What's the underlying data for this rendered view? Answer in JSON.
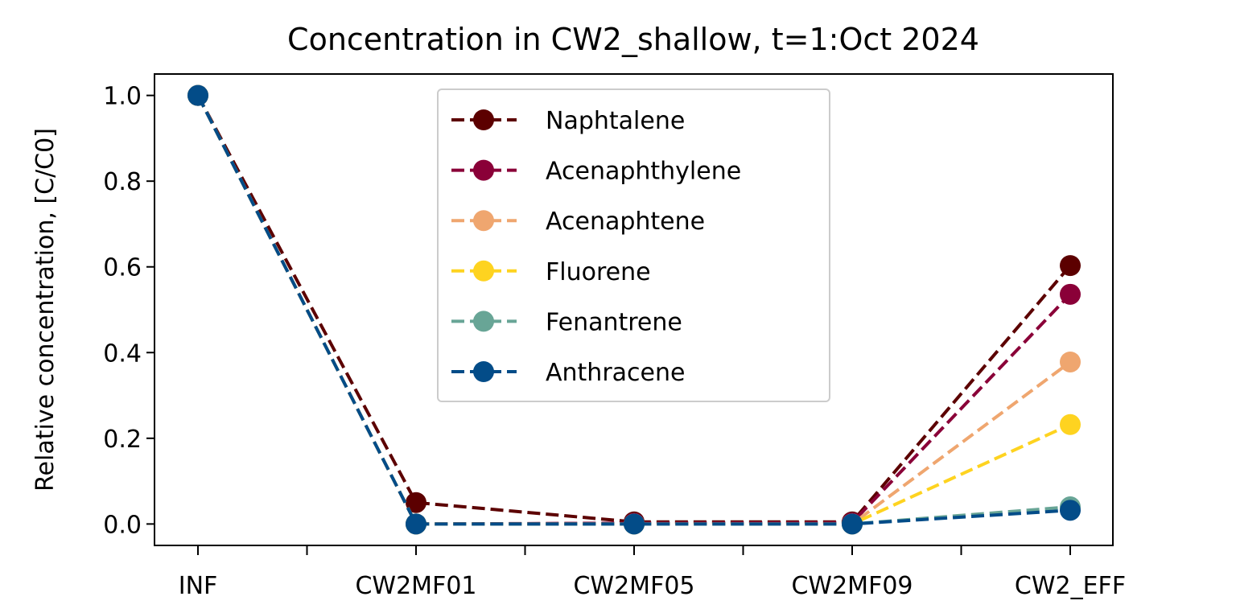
{
  "chart_data": {
    "type": "line",
    "title": "Concentration in CW2_shallow, t=1:Oct 2024",
    "xlabel": "",
    "ylabel": "Relative concentration, [C/C0]",
    "categories": [
      "INF",
      "CW2MF01",
      "CW2MF05",
      "CW2MF09",
      "CW2_EFF"
    ],
    "ylim": [
      -0.05,
      1.05
    ],
    "yticks": [
      "0.0",
      "0.2",
      "0.4",
      "0.6",
      "0.8",
      "1.0"
    ],
    "ytick_values": [
      0.0,
      0.2,
      0.4,
      0.6,
      0.8,
      1.0
    ],
    "grid": false,
    "legend_position": "upper-center",
    "line_style": "dashed",
    "marker": "circle",
    "series": [
      {
        "name": "Naphtalene",
        "color": "#5c0000",
        "values": [
          1.0,
          0.05,
          0.005,
          0.005,
          0.603
        ]
      },
      {
        "name": "Acenaphthylene",
        "color": "#8a0038",
        "values": [
          1.0,
          0.0,
          0.002,
          0.003,
          0.536
        ]
      },
      {
        "name": "Acenaphtene",
        "color": "#efa66f",
        "values": [
          1.0,
          0.0,
          0.0,
          0.0,
          0.378
        ]
      },
      {
        "name": "Fluorene",
        "color": "#fed320",
        "values": [
          1.0,
          0.0,
          0.0,
          0.0,
          0.232
        ]
      },
      {
        "name": "Fenantrene",
        "color": "#68a596",
        "values": [
          1.0,
          0.0,
          0.0,
          0.0,
          0.04
        ]
      },
      {
        "name": "Anthracene",
        "color": "#034c88",
        "values": [
          1.0,
          0.0,
          0.0,
          0.0,
          0.032
        ]
      }
    ]
  }
}
